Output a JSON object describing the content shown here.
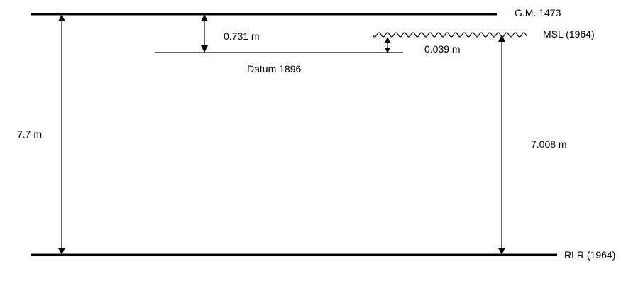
{
  "diagram": {
    "labels": {
      "gm": "G.M. 1473",
      "msl": "MSL (1964)",
      "rlr": "RLR (1964)",
      "datum": "Datum 1896–",
      "gm_to_datum": "0.731 m",
      "datum_to_msl": "0.039 m",
      "gm_to_rlr": "7.7 m",
      "msl_to_rlr": "7.008 m"
    },
    "colors": {
      "line": "#000000",
      "background": "#ffffff"
    }
  }
}
